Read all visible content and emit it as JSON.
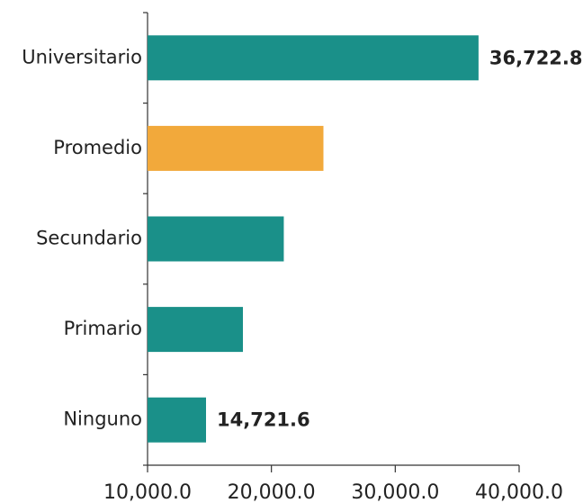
{
  "chart_data": {
    "type": "bar",
    "orientation": "horizontal",
    "categories": [
      "Universitario",
      "Promedio",
      "Secundario",
      "Primario",
      "Ninguno"
    ],
    "values": [
      36722.8,
      24200,
      21000,
      17700,
      14721.6
    ],
    "value_labels": [
      "36,722.8",
      null,
      null,
      null,
      "14,721.6"
    ],
    "colors": [
      "#1a9089",
      "#f2a93b",
      "#1a9089",
      "#1a9089",
      "#1a9089"
    ],
    "xlim": [
      10000,
      40000
    ],
    "xticks": [
      {
        "value": 10000,
        "label": "10,000.0"
      },
      {
        "value": 20000,
        "label": "20,000.0"
      },
      {
        "value": 30000,
        "label": "30,000.0"
      },
      {
        "value": 40000,
        "label": "40,000.0"
      }
    ],
    "grid": false
  }
}
